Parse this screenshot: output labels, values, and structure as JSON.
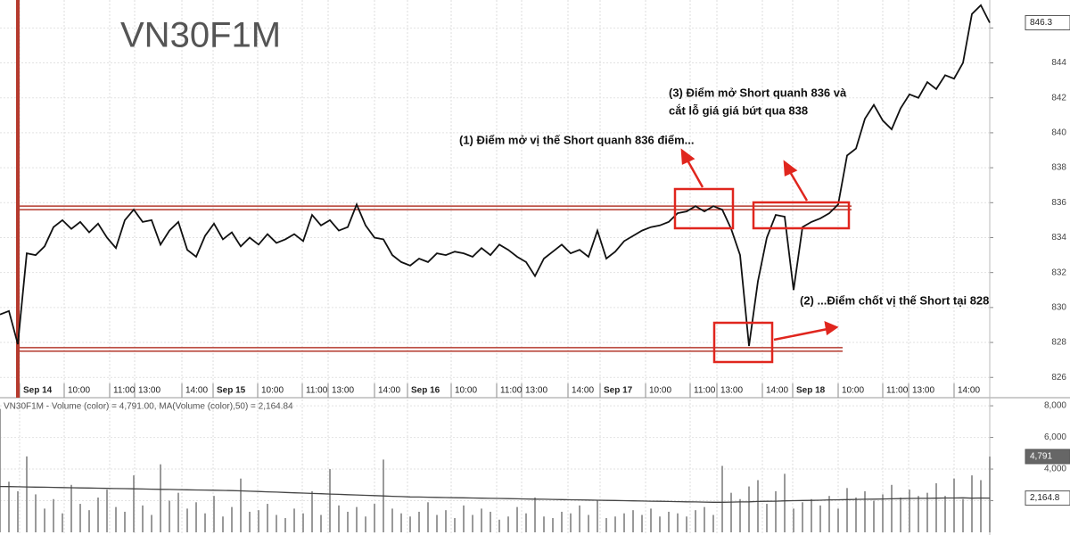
{
  "chart_data": [
    {
      "type": "line",
      "title": "VN30F1M",
      "series": [
        {
          "color": "#111111",
          "last_value_label": "846.3",
          "values": [
            829.6,
            829.8,
            827.9,
            833.1,
            833.0,
            833.5,
            834.6,
            835.0,
            834.5,
            834.9,
            834.3,
            834.8,
            834.0,
            833.4,
            835.0,
            835.6,
            834.9,
            835.0,
            833.6,
            834.4,
            834.9,
            833.3,
            832.9,
            834.1,
            834.8,
            833.9,
            834.3,
            833.5,
            834.0,
            833.6,
            834.2,
            833.7,
            833.9,
            834.2,
            833.8,
            835.3,
            834.7,
            835.0,
            834.4,
            834.6,
            835.9,
            834.7,
            834.0,
            833.9,
            833.0,
            832.6,
            832.4,
            832.8,
            832.6,
            833.1,
            833.0,
            833.2,
            833.1,
            832.9,
            833.4,
            833.0,
            833.6,
            833.3,
            832.9,
            832.6,
            831.8,
            832.8,
            833.2,
            833.6,
            833.1,
            833.3,
            832.9,
            834.4,
            832.8,
            833.2,
            833.8,
            834.1,
            834.4,
            834.6,
            834.7,
            834.9,
            835.4,
            835.5,
            835.8,
            835.5,
            835.8,
            835.6,
            834.5,
            833.0,
            827.8,
            831.5,
            834.0,
            835.3,
            835.2,
            831.0,
            834.6,
            834.9,
            835.1,
            835.4,
            835.9,
            838.7,
            839.1,
            840.8,
            841.6,
            840.7,
            840.2,
            841.4,
            842.2,
            842.0,
            842.9,
            842.5,
            843.3,
            843.1,
            844.0,
            846.8,
            847.3,
            846.3
          ]
        }
      ],
      "xlim": [
        0,
        111
      ],
      "xticks": [
        {
          "value": 2.2,
          "label": "Sep 14"
        },
        {
          "value": 7.2,
          "label": "10:00"
        },
        {
          "value": 12.3,
          "label": "11:00"
        },
        {
          "value": 15.1,
          "label": "13:00"
        },
        {
          "value": 20.4,
          "label": "14:00"
        },
        {
          "value": 23.9,
          "label": "Sep 15"
        },
        {
          "value": 28.9,
          "label": "10:00"
        },
        {
          "value": 33.9,
          "label": "11:00"
        },
        {
          "value": 36.8,
          "label": "13:00"
        },
        {
          "value": 42,
          "label": "14:00"
        },
        {
          "value": 45.7,
          "label": "Sep 16"
        },
        {
          "value": 50.6,
          "label": "10:00"
        },
        {
          "value": 55.7,
          "label": "11:00"
        },
        {
          "value": 58.5,
          "label": "13:00"
        },
        {
          "value": 63.7,
          "label": "14:00"
        },
        {
          "value": 67.3,
          "label": "Sep 17"
        },
        {
          "value": 72.4,
          "label": "10:00"
        },
        {
          "value": 77.4,
          "label": "11:00"
        },
        {
          "value": 80.4,
          "label": "13:00"
        },
        {
          "value": 85.5,
          "label": "14:00"
        },
        {
          "value": 88.9,
          "label": "Sep 18"
        },
        {
          "value": 94,
          "label": "10:00"
        },
        {
          "value": 99,
          "label": "11:00"
        },
        {
          "value": 101.9,
          "label": "13:00"
        },
        {
          "value": 107,
          "label": "14:00"
        }
      ],
      "ylim": [
        825.4,
        847.6
      ],
      "yticks": [
        826,
        828,
        830,
        832,
        834,
        836,
        838,
        840,
        842,
        844,
        846
      ],
      "grid": true,
      "hlines": [
        835.7,
        827.6
      ],
      "annotations": [
        "(1) Điểm mở vị thế Short quanh 836 điểm...",
        "(2) ...Điểm chốt vị thế Short tại 828",
        "(3) Điểm mở Short quanh 836 và",
        "cắt lỗ giá giá bứt qua 838"
      ]
    },
    {
      "type": "bar",
      "legend": "VN30F1M - Volume (color) = 4,791.00, MA(Volume (color),50) = 2,164.84",
      "series": [
        {
          "color": "#9a9a9a",
          "last_value_label": "4,791",
          "values": [
            7800,
            3200,
            2600,
            4800,
            2400,
            1500,
            2100,
            1200,
            3000,
            1800,
            1400,
            2200,
            2700,
            1600,
            1300,
            3600,
            1700,
            1100,
            4300,
            2000,
            2500,
            1500,
            1900,
            1200,
            2300,
            1000,
            1600,
            3400,
            1300,
            1400,
            1800,
            1100,
            900,
            1500,
            1200,
            2600,
            1100,
            4000,
            1700,
            1300,
            1600,
            1000,
            1800,
            4600,
            1500,
            1200,
            1000,
            1300,
            1900,
            1100,
            1400,
            900,
            1700,
            1100,
            1500,
            1300,
            800,
            1000,
            1600,
            1200,
            2200,
            1000,
            900,
            1300,
            1200,
            1700,
            1100,
            2000,
            900,
            1000,
            1200,
            1400,
            1100,
            1500,
            1000,
            1300,
            1200,
            1000,
            1400,
            1600,
            1100,
            4200,
            2500,
            2100,
            2900,
            3300,
            1800,
            2600,
            3700,
            1500,
            1900,
            2100,
            1700,
            2300,
            1500,
            2800,
            2200,
            2600,
            2000,
            2400,
            3000,
            2200,
            2700,
            2300,
            2500,
            3100,
            2300,
            3400,
            2100,
            3600,
            3300,
            4791
          ]
        },
        {
          "color": "#444444",
          "last_value_label": "2,164.8",
          "values": [
            2900,
            2890,
            2880,
            2870,
            2860,
            2850,
            2840,
            2830,
            2820,
            2810,
            2800,
            2790,
            2780,
            2770,
            2760,
            2750,
            2740,
            2730,
            2720,
            2710,
            2700,
            2690,
            2680,
            2670,
            2660,
            2650,
            2640,
            2620,
            2600,
            2580,
            2560,
            2540,
            2520,
            2500,
            2480,
            2460,
            2440,
            2420,
            2400,
            2380,
            2360,
            2340,
            2320,
            2300,
            2280,
            2260,
            2240,
            2230,
            2220,
            2210,
            2200,
            2190,
            2180,
            2170,
            2160,
            2150,
            2140,
            2130,
            2120,
            2110,
            2100,
            2090,
            2080,
            2070,
            2060,
            2050,
            2040,
            2030,
            2020,
            2010,
            2000,
            1990,
            1980,
            1970,
            1960,
            1950,
            1940,
            1930,
            1920,
            1910,
            1900,
            1900,
            1910,
            1920,
            1930,
            1950,
            1960,
            1970,
            1990,
            2000,
            2010,
            2020,
            2030,
            2050,
            2060,
            2070,
            2080,
            2090,
            2100,
            2110,
            2120,
            2130,
            2140,
            2150,
            2150,
            2160,
            2170,
            2170,
            2180,
            2160,
            2170,
            2164.84
          ]
        }
      ],
      "xlim": [
        0,
        111
      ],
      "ylim": [
        0,
        8400
      ],
      "yticks": [
        {
          "value": 2000,
          "label": "2,000"
        },
        {
          "value": 4000,
          "label": "4,000"
        },
        {
          "value": 6000,
          "label": "6,000"
        },
        {
          "value": 8000,
          "label": "8,000"
        }
      ]
    }
  ]
}
